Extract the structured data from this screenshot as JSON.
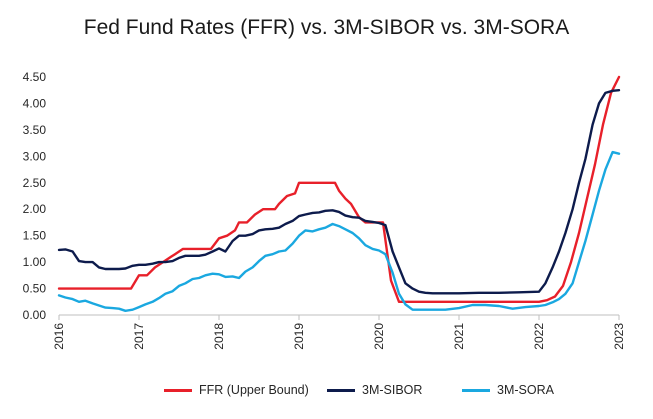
{
  "chart_data": {
    "type": "line",
    "title": "Fed Fund Rates (FFR) vs. 3M-SIBOR vs. 3M-SORA",
    "xlabel": "",
    "ylabel": "",
    "xlim": [
      2016,
      2023
    ],
    "ylim": [
      0,
      4.5
    ],
    "y_ticks": [
      "0.00",
      "0.50",
      "1.00",
      "1.50",
      "2.00",
      "2.50",
      "3.00",
      "3.50",
      "4.00",
      "4.50"
    ],
    "x_ticks": [
      "2016",
      "2017",
      "2018",
      "2019",
      "2020",
      "2021",
      "2022",
      "2023"
    ],
    "grid": false,
    "legend_position": "bottom",
    "series": [
      {
        "name": "FFR (Upper Bound)",
        "color": "#e8202a",
        "x": [
          2016.0,
          2016.9,
          2016.96,
          2017.0,
          2017.1,
          2017.2,
          2017.3,
          2017.4,
          2017.45,
          2017.55,
          2017.9,
          2017.95,
          2018.0,
          2018.1,
          2018.2,
          2018.25,
          2018.35,
          2018.45,
          2018.55,
          2018.7,
          2018.75,
          2018.85,
          2018.95,
          2019.0,
          2019.45,
          2019.5,
          2019.58,
          2019.65,
          2019.75,
          2019.83,
          2020.05,
          2020.1,
          2020.15,
          2020.25,
          2020.5,
          2021.0,
          2021.5,
          2022.0,
          2022.1,
          2022.2,
          2022.3,
          2022.4,
          2022.5,
          2022.6,
          2022.7,
          2022.8,
          2022.9,
          2023.0
        ],
        "values": [
          0.5,
          0.5,
          0.65,
          0.75,
          0.75,
          0.9,
          1.0,
          1.1,
          1.15,
          1.25,
          1.25,
          1.35,
          1.45,
          1.5,
          1.6,
          1.75,
          1.75,
          1.9,
          2.0,
          2.0,
          2.1,
          2.25,
          2.3,
          2.5,
          2.5,
          2.35,
          2.2,
          2.1,
          1.85,
          1.75,
          1.75,
          1.2,
          0.65,
          0.25,
          0.25,
          0.25,
          0.25,
          0.25,
          0.28,
          0.35,
          0.55,
          1.0,
          1.55,
          2.2,
          2.85,
          3.6,
          4.2,
          4.5
        ]
      },
      {
        "name": "3M-SIBOR",
        "color": "#0d1b4c",
        "x": [
          2016.0,
          2016.08,
          2016.17,
          2016.25,
          2016.33,
          2016.42,
          2016.5,
          2016.58,
          2016.67,
          2016.75,
          2016.83,
          2016.92,
          2017.0,
          2017.08,
          2017.17,
          2017.25,
          2017.33,
          2017.42,
          2017.5,
          2017.58,
          2017.67,
          2017.75,
          2017.83,
          2017.92,
          2018.0,
          2018.08,
          2018.17,
          2018.25,
          2018.33,
          2018.42,
          2018.5,
          2018.58,
          2018.67,
          2018.75,
          2018.83,
          2018.92,
          2019.0,
          2019.08,
          2019.17,
          2019.25,
          2019.33,
          2019.42,
          2019.5,
          2019.58,
          2019.67,
          2019.75,
          2019.83,
          2019.92,
          2020.0,
          2020.08,
          2020.17,
          2020.25,
          2020.33,
          2020.42,
          2020.5,
          2020.58,
          2020.67,
          2020.75,
          2021.0,
          2021.25,
          2021.5,
          2021.75,
          2022.0,
          2022.08,
          2022.17,
          2022.25,
          2022.33,
          2022.42,
          2022.5,
          2022.58,
          2022.67,
          2022.75,
          2022.83,
          2022.92,
          2023.0
        ],
        "values": [
          1.23,
          1.24,
          1.2,
          1.02,
          1.0,
          1.0,
          0.9,
          0.87,
          0.87,
          0.87,
          0.88,
          0.93,
          0.95,
          0.95,
          0.97,
          1.0,
          1.0,
          1.02,
          1.08,
          1.12,
          1.12,
          1.12,
          1.14,
          1.2,
          1.26,
          1.2,
          1.4,
          1.5,
          1.5,
          1.53,
          1.6,
          1.62,
          1.63,
          1.65,
          1.72,
          1.78,
          1.87,
          1.9,
          1.93,
          1.94,
          1.97,
          1.98,
          1.95,
          1.88,
          1.85,
          1.84,
          1.78,
          1.76,
          1.74,
          1.7,
          1.2,
          0.9,
          0.6,
          0.5,
          0.44,
          0.42,
          0.41,
          0.41,
          0.41,
          0.42,
          0.42,
          0.43,
          0.44,
          0.6,
          0.9,
          1.2,
          1.55,
          2.0,
          2.5,
          2.95,
          3.6,
          4.0,
          4.2,
          4.24,
          4.25
        ]
      },
      {
        "name": "3M-SORA",
        "color": "#1aa8e0",
        "x": [
          2016.0,
          2016.08,
          2016.17,
          2016.25,
          2016.33,
          2016.42,
          2016.5,
          2016.58,
          2016.67,
          2016.75,
          2016.83,
          2016.92,
          2017.0,
          2017.08,
          2017.17,
          2017.25,
          2017.33,
          2017.42,
          2017.5,
          2017.58,
          2017.67,
          2017.75,
          2017.83,
          2017.92,
          2018.0,
          2018.08,
          2018.17,
          2018.25,
          2018.33,
          2018.42,
          2018.5,
          2018.58,
          2018.67,
          2018.75,
          2018.83,
          2018.92,
          2019.0,
          2019.08,
          2019.17,
          2019.25,
          2019.33,
          2019.42,
          2019.5,
          2019.58,
          2019.67,
          2019.75,
          2019.83,
          2019.92,
          2020.0,
          2020.08,
          2020.17,
          2020.25,
          2020.33,
          2020.42,
          2020.5,
          2020.67,
          2020.83,
          2021.0,
          2021.17,
          2021.33,
          2021.5,
          2021.67,
          2021.83,
          2022.0,
          2022.08,
          2022.17,
          2022.25,
          2022.33,
          2022.42,
          2022.5,
          2022.58,
          2022.67,
          2022.75,
          2022.83,
          2022.92,
          2023.0
        ],
        "values": [
          0.37,
          0.33,
          0.3,
          0.25,
          0.27,
          0.22,
          0.18,
          0.14,
          0.13,
          0.12,
          0.08,
          0.1,
          0.15,
          0.2,
          0.25,
          0.32,
          0.4,
          0.45,
          0.55,
          0.6,
          0.68,
          0.7,
          0.75,
          0.78,
          0.77,
          0.72,
          0.73,
          0.7,
          0.82,
          0.9,
          1.02,
          1.12,
          1.15,
          1.2,
          1.22,
          1.35,
          1.5,
          1.6,
          1.58,
          1.62,
          1.65,
          1.72,
          1.68,
          1.62,
          1.55,
          1.45,
          1.32,
          1.25,
          1.22,
          1.15,
          0.8,
          0.4,
          0.2,
          0.1,
          0.1,
          0.1,
          0.1,
          0.13,
          0.19,
          0.19,
          0.17,
          0.12,
          0.15,
          0.17,
          0.19,
          0.24,
          0.3,
          0.4,
          0.6,
          1.0,
          1.4,
          1.9,
          2.35,
          2.75,
          3.08,
          3.05
        ]
      }
    ]
  }
}
